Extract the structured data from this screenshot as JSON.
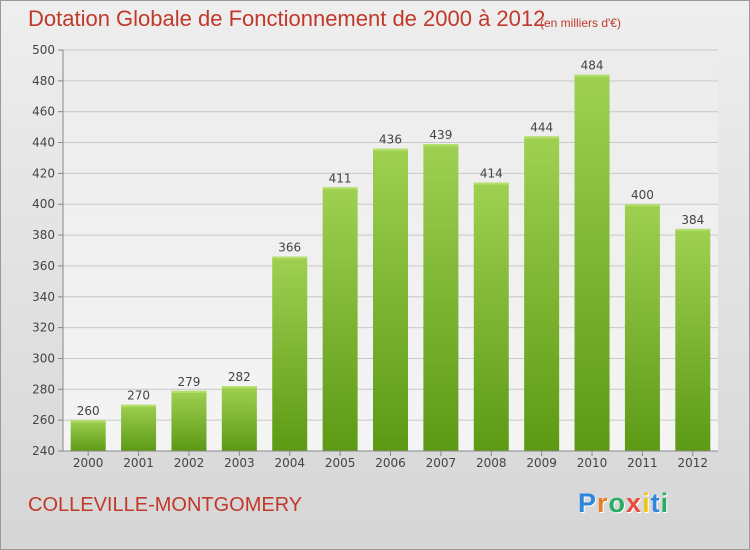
{
  "header": {
    "title": "Dotation Globale de Fonctionnement de 2000 à 2012",
    "unit": "(en milliers d'€)"
  },
  "footer": {
    "commune": "COLLEVILLE-MONTGOMERY",
    "logo_letters": [
      "P",
      "r",
      "o",
      "x",
      "i",
      "t",
      "i"
    ],
    "logo_colors": [
      "#2e86de",
      "#e67e22",
      "#27ae60",
      "#e74c3c",
      "#f1c40f",
      "#2e86de",
      "#27ae60"
    ]
  },
  "chart_data": {
    "type": "bar",
    "title": "Dotation Globale de Fonctionnement de 2000 à 2012",
    "subtitle": "(en milliers d'€)",
    "categories": [
      "2000",
      "2001",
      "2002",
      "2003",
      "2004",
      "2005",
      "2006",
      "2007",
      "2008",
      "2009",
      "2010",
      "2011",
      "2012"
    ],
    "values": [
      260,
      270,
      279,
      282,
      366,
      411,
      436,
      439,
      414,
      444,
      484,
      400,
      384
    ],
    "ylim": [
      240,
      500
    ],
    "yticks": [
      240,
      260,
      280,
      300,
      320,
      340,
      360,
      380,
      400,
      420,
      440,
      460,
      480,
      500
    ],
    "grid": true,
    "colors": {
      "bar_top": "#9fd052",
      "bar_bottom": "#5c9a14",
      "grid": "#c8c8c8"
    }
  }
}
